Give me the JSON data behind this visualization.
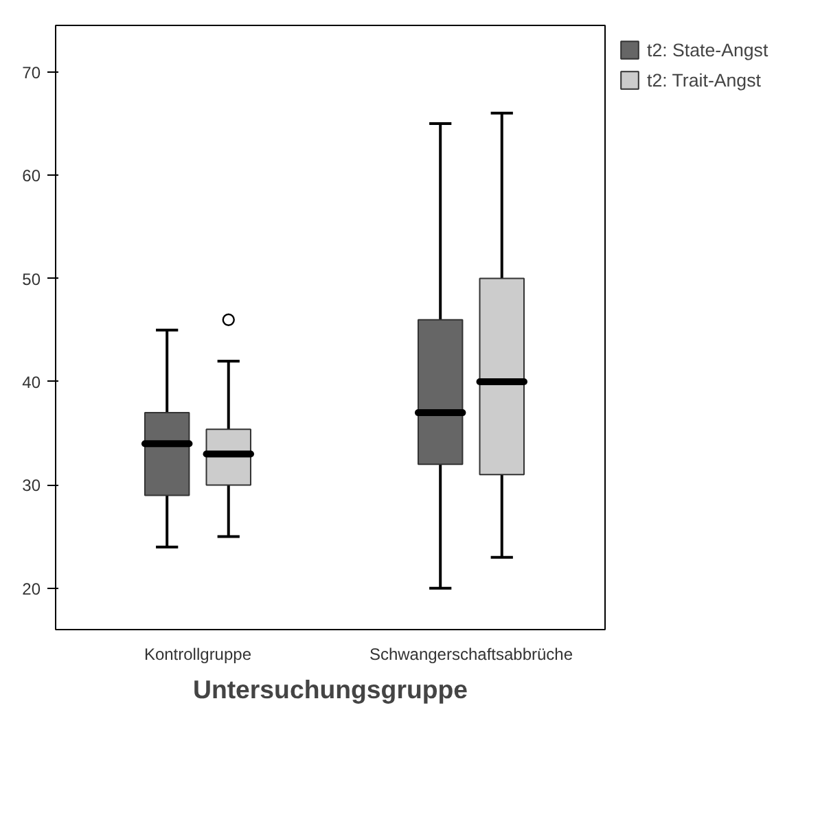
{
  "chart_data": {
    "type": "box",
    "xlabel": "Untersuchungsgruppe",
    "categories": [
      "Kontrollgruppe",
      "Schwangerschaftsabbrüche"
    ],
    "series": [
      {
        "name": "t2: State-Angst",
        "color": "#666666",
        "boxes": [
          {
            "low": 24,
            "q1": 29,
            "median": 34,
            "q3": 37,
            "high": 45
          },
          {
            "low": 20,
            "q1": 32,
            "median": 37,
            "q3": 46,
            "high": 65
          }
        ]
      },
      {
        "name": "t2: Trait-Angst",
        "color": "#cccccc",
        "boxes": [
          {
            "low": 25,
            "q1": 30,
            "median": 33,
            "q3": 35.4,
            "high": 42,
            "outliers": [
              46
            ]
          },
          {
            "low": 23,
            "q1": 31,
            "median": 40,
            "q3": 50,
            "high": 66
          }
        ]
      }
    ],
    "ylim": [
      16,
      74.5
    ],
    "yticks": [
      20,
      30,
      40,
      50,
      60,
      70
    ],
    "grid": false,
    "legend": "top right"
  }
}
